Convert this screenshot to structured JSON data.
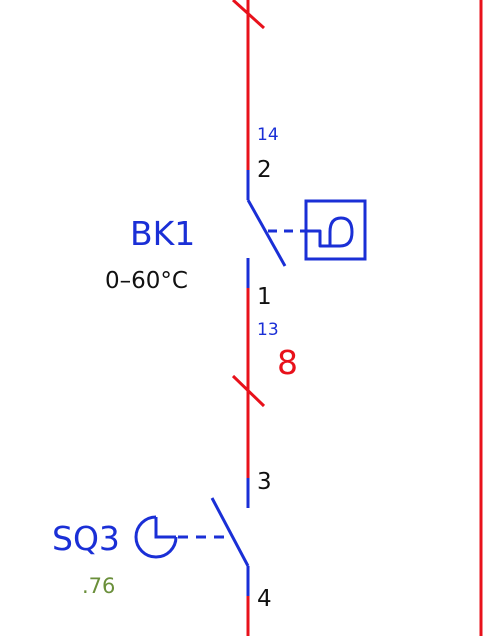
{
  "colors": {
    "wire": "#e8111b",
    "contact": "#1a2fd6",
    "text": "#111111",
    "green": "#6a8f3a",
    "background": "#ffffff"
  },
  "labels": {
    "bk1_name": "BK1",
    "bk1_range": "0–60°C",
    "pin_14": "14",
    "pin_2": "2",
    "pin_1": "1",
    "pin_13": "13",
    "wire_number": "8",
    "pin_3": "3",
    "sq3_name": "SQ3",
    "sq3_value": ".76",
    "pin_4": "4"
  },
  "icons": {
    "thermostat": "thermostat-sensor-icon",
    "timer": "timer-actuator-icon"
  }
}
